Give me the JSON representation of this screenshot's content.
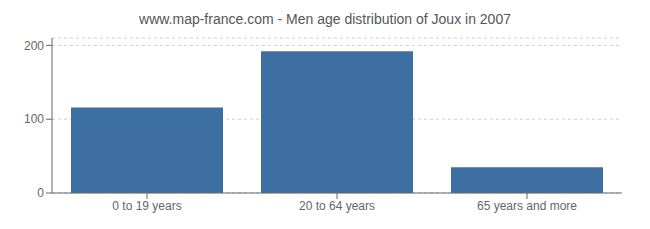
{
  "chart_data": {
    "type": "bar",
    "title": "www.map-france.com - Men age distribution of Joux in 2007",
    "categories": [
      "0 to 19 years",
      "20 to 64 years",
      "65 years and more"
    ],
    "values": [
      116,
      192,
      35
    ],
    "color": "#3d6fa3",
    "ylim": [
      0,
      210
    ],
    "yticks": [
      0,
      100,
      200
    ],
    "grid": true
  }
}
